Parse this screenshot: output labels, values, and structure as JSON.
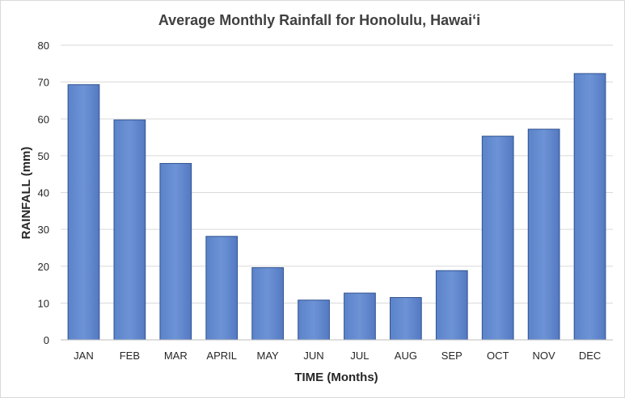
{
  "chart_data": {
    "type": "bar",
    "title": "Average Monthly Rainfall for Honolulu, Hawai‘i",
    "xlabel": "TIME (Months)",
    "ylabel": "RAINFALL (mm)",
    "categories": [
      "JAN",
      "FEB",
      "MAR",
      "APRIL",
      "MAY",
      "JUN",
      "JUL",
      "AUG",
      "SEP",
      "OCT",
      "NOV",
      "DEC"
    ],
    "values": [
      69.3,
      59.7,
      47.9,
      28.1,
      19.6,
      10.8,
      12.7,
      11.5,
      18.8,
      55.3,
      57.2,
      72.3
    ],
    "ylim": [
      0,
      80
    ],
    "yticks": [
      "0",
      "10",
      "20",
      "30",
      "40",
      "50",
      "60",
      "70",
      "80"
    ],
    "grid": true,
    "bar_color": "#4472c4"
  }
}
